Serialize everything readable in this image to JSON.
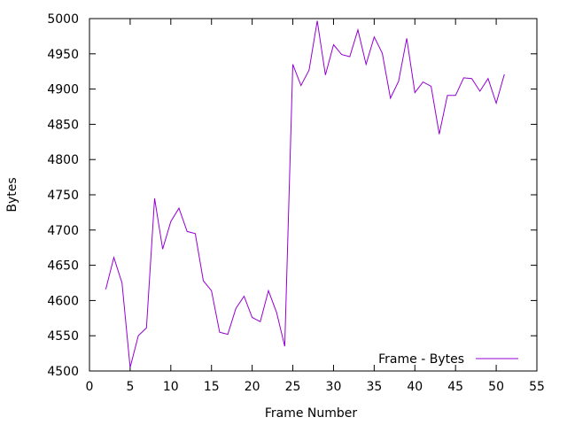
{
  "chart_data": {
    "type": "line",
    "title": "",
    "xlabel": "Frame Number",
    "ylabel": "Bytes",
    "xlim": [
      0,
      55
    ],
    "ylim": [
      4500,
      5000
    ],
    "xticks": [
      0,
      5,
      10,
      15,
      20,
      25,
      30,
      35,
      40,
      45,
      50,
      55
    ],
    "yticks": [
      4500,
      4550,
      4600,
      4650,
      4700,
      4750,
      4800,
      4850,
      4900,
      4950,
      5000
    ],
    "grid": false,
    "legend_position": "bottom-right",
    "series": [
      {
        "name": "Frame - Bytes",
        "color": "#9400d3",
        "x": [
          2,
          3,
          4,
          5,
          6,
          7,
          8,
          9,
          10,
          11,
          12,
          13,
          14,
          15,
          16,
          17,
          18,
          19,
          20,
          21,
          22,
          23,
          24,
          25,
          26,
          27,
          28,
          29,
          30,
          31,
          32,
          33,
          34,
          35,
          36,
          37,
          38,
          39,
          40,
          41,
          42,
          43,
          44,
          45,
          46,
          47,
          48,
          49,
          50,
          51
        ],
        "y": [
          4616,
          4661,
          4625,
          4505,
          4550,
          4561,
          4745,
          4673,
          4712,
          4731,
          4698,
          4695,
          4628,
          4614,
          4555,
          4552,
          4589,
          4606,
          4576,
          4570,
          4614,
          4583,
          4535,
          4935,
          4905,
          4927,
          4997,
          4920,
          4963,
          4949,
          4946,
          4984,
          4935,
          4974,
          4951,
          4887,
          4911,
          4972,
          4895,
          4910,
          4904,
          4836,
          4891,
          4891,
          4916,
          4915,
          4897,
          4915,
          4880,
          4921
        ]
      }
    ]
  }
}
